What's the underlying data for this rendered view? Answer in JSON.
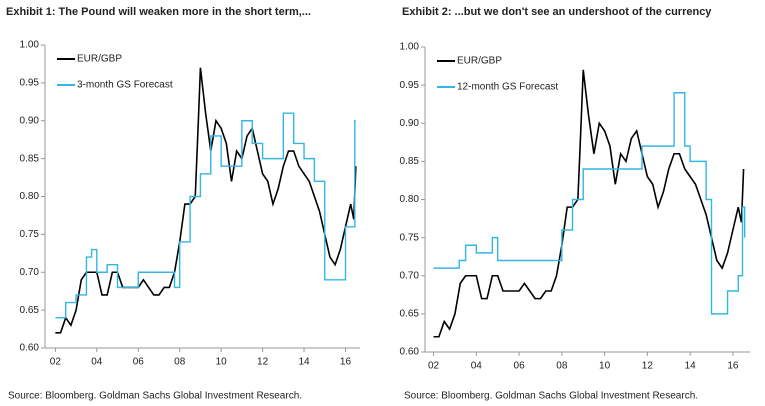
{
  "chart_data": [
    {
      "type": "line",
      "title": "Exhibit 1: The Pound will weaken more in the short term,...",
      "source": "Source: Bloomberg. Goldman Sachs Global Investment Research.",
      "xlim": [
        2001.5,
        2016.7
      ],
      "xticks": [
        {
          "value": 2002,
          "label": "02"
        },
        {
          "value": 2004,
          "label": "04"
        },
        {
          "value": 2006,
          "label": "06"
        },
        {
          "value": 2008,
          "label": "08"
        },
        {
          "value": 2010,
          "label": "10"
        },
        {
          "value": 2012,
          "label": "12"
        },
        {
          "value": 2014,
          "label": "14"
        },
        {
          "value": 2016,
          "label": "16"
        }
      ],
      "ylim": [
        0.6,
        1.0
      ],
      "yticks": [
        {
          "value": 0.6,
          "label": "0.60"
        },
        {
          "value": 0.65,
          "label": "0.65"
        },
        {
          "value": 0.7,
          "label": "0.70"
        },
        {
          "value": 0.75,
          "label": "0.75"
        },
        {
          "value": 0.8,
          "label": "0.80"
        },
        {
          "value": 0.85,
          "label": "0.85"
        },
        {
          "value": 0.9,
          "label": "0.90"
        },
        {
          "value": 0.95,
          "label": "0.95"
        },
        {
          "value": 1.0,
          "label": "1.00"
        }
      ],
      "legend": "upper left",
      "series": [
        {
          "name": "EUR/GBP",
          "color": "#000000",
          "drawstyle": "default",
          "x": [
            2002.0,
            2002.25,
            2002.5,
            2002.75,
            2003.0,
            2003.25,
            2003.5,
            2003.75,
            2004.0,
            2004.25,
            2004.5,
            2004.75,
            2005.0,
            2005.25,
            2005.5,
            2005.75,
            2006.0,
            2006.25,
            2006.5,
            2006.75,
            2007.0,
            2007.25,
            2007.5,
            2007.75,
            2008.0,
            2008.25,
            2008.5,
            2008.75,
            2008.9,
            2009.0,
            2009.25,
            2009.5,
            2009.75,
            2010.0,
            2010.25,
            2010.5,
            2010.75,
            2011.0,
            2011.25,
            2011.5,
            2011.75,
            2012.0,
            2012.25,
            2012.5,
            2012.75,
            2013.0,
            2013.25,
            2013.5,
            2013.75,
            2014.0,
            2014.25,
            2014.5,
            2014.75,
            2015.0,
            2015.25,
            2015.5,
            2015.75,
            2016.0,
            2016.25,
            2016.4,
            2016.5
          ],
          "values": [
            0.62,
            0.62,
            0.64,
            0.63,
            0.65,
            0.69,
            0.7,
            0.7,
            0.7,
            0.67,
            0.67,
            0.7,
            0.7,
            0.68,
            0.68,
            0.68,
            0.68,
            0.69,
            0.68,
            0.67,
            0.67,
            0.68,
            0.68,
            0.7,
            0.74,
            0.79,
            0.79,
            0.8,
            0.9,
            0.97,
            0.91,
            0.86,
            0.9,
            0.89,
            0.87,
            0.82,
            0.86,
            0.85,
            0.88,
            0.89,
            0.86,
            0.83,
            0.82,
            0.79,
            0.81,
            0.84,
            0.86,
            0.86,
            0.84,
            0.83,
            0.82,
            0.8,
            0.78,
            0.75,
            0.72,
            0.71,
            0.73,
            0.76,
            0.79,
            0.77,
            0.84
          ]
        },
        {
          "name": "3-month GS Forecast",
          "color": "#33b5e5",
          "drawstyle": "steps-post",
          "x": [
            2002.0,
            2002.5,
            2003.0,
            2003.5,
            2003.75,
            2004.0,
            2004.5,
            2005.0,
            2006.0,
            2007.0,
            2007.75,
            2008.0,
            2008.5,
            2009.0,
            2009.5,
            2010.0,
            2011.0,
            2011.5,
            2012.0,
            2013.0,
            2013.5,
            2014.0,
            2014.5,
            2015.0,
            2016.0,
            2016.45,
            2016.5
          ],
          "values": [
            0.64,
            0.66,
            0.67,
            0.72,
            0.73,
            0.7,
            0.71,
            0.68,
            0.7,
            0.7,
            0.68,
            0.74,
            0.8,
            0.83,
            0.88,
            0.84,
            0.9,
            0.87,
            0.85,
            0.91,
            0.87,
            0.85,
            0.82,
            0.69,
            0.76,
            0.9,
            0.9
          ]
        }
      ]
    },
    {
      "type": "line",
      "title": "Exhibit 2: ...but we don't see an undershoot of the currency",
      "source": "Source: Bloomberg. Goldman Sachs Global Investment Research.",
      "xlim": [
        2001.6,
        2016.8
      ],
      "xticks": [
        {
          "value": 2002,
          "label": "02"
        },
        {
          "value": 2004,
          "label": "04"
        },
        {
          "value": 2006,
          "label": "06"
        },
        {
          "value": 2008,
          "label": "08"
        },
        {
          "value": 2010,
          "label": "10"
        },
        {
          "value": 2012,
          "label": "12"
        },
        {
          "value": 2014,
          "label": "14"
        },
        {
          "value": 2016,
          "label": "16"
        }
      ],
      "ylim": [
        0.6,
        1.0
      ],
      "yticks": [
        {
          "value": 0.6,
          "label": "0.60"
        },
        {
          "value": 0.65,
          "label": "0.65"
        },
        {
          "value": 0.7,
          "label": "0.70"
        },
        {
          "value": 0.75,
          "label": "0.75"
        },
        {
          "value": 0.8,
          "label": "0.80"
        },
        {
          "value": 0.85,
          "label": "0.85"
        },
        {
          "value": 0.9,
          "label": "0.90"
        },
        {
          "value": 0.95,
          "label": "0.95"
        },
        {
          "value": 1.0,
          "label": "1.00"
        }
      ],
      "legend": "upper left",
      "series": [
        {
          "name": "EUR/GBP",
          "color": "#000000",
          "drawstyle": "default",
          "x": [
            2002.0,
            2002.25,
            2002.5,
            2002.75,
            2003.0,
            2003.25,
            2003.5,
            2003.75,
            2004.0,
            2004.25,
            2004.5,
            2004.75,
            2005.0,
            2005.25,
            2005.5,
            2005.75,
            2006.0,
            2006.25,
            2006.5,
            2006.75,
            2007.0,
            2007.25,
            2007.5,
            2007.75,
            2008.0,
            2008.25,
            2008.5,
            2008.75,
            2008.9,
            2009.0,
            2009.25,
            2009.5,
            2009.75,
            2010.0,
            2010.25,
            2010.5,
            2010.75,
            2011.0,
            2011.25,
            2011.5,
            2011.75,
            2012.0,
            2012.25,
            2012.5,
            2012.75,
            2013.0,
            2013.25,
            2013.5,
            2013.75,
            2014.0,
            2014.25,
            2014.5,
            2014.75,
            2015.0,
            2015.25,
            2015.5,
            2015.75,
            2016.0,
            2016.25,
            2016.4,
            2016.5
          ],
          "values": [
            0.62,
            0.62,
            0.64,
            0.63,
            0.65,
            0.69,
            0.7,
            0.7,
            0.7,
            0.67,
            0.67,
            0.7,
            0.7,
            0.68,
            0.68,
            0.68,
            0.68,
            0.69,
            0.68,
            0.67,
            0.67,
            0.68,
            0.68,
            0.7,
            0.74,
            0.79,
            0.79,
            0.8,
            0.9,
            0.97,
            0.91,
            0.86,
            0.9,
            0.89,
            0.87,
            0.82,
            0.86,
            0.85,
            0.88,
            0.89,
            0.86,
            0.83,
            0.82,
            0.79,
            0.81,
            0.84,
            0.86,
            0.86,
            0.84,
            0.83,
            0.82,
            0.8,
            0.78,
            0.75,
            0.72,
            0.71,
            0.73,
            0.76,
            0.79,
            0.77,
            0.84
          ]
        },
        {
          "name": "12-month GS Forecast",
          "color": "#33b5e5",
          "drawstyle": "steps-post",
          "x": [
            2002.0,
            2003.2,
            2003.5,
            2004.0,
            2004.75,
            2005.0,
            2007.0,
            2008.0,
            2008.5,
            2009.0,
            2011.0,
            2011.75,
            2013.25,
            2013.75,
            2014.0,
            2014.75,
            2015.0,
            2015.75,
            2016.25,
            2016.45,
            2016.55
          ],
          "values": [
            0.71,
            0.72,
            0.74,
            0.73,
            0.75,
            0.72,
            0.72,
            0.76,
            0.8,
            0.84,
            0.84,
            0.87,
            0.94,
            0.87,
            0.85,
            0.8,
            0.65,
            0.68,
            0.7,
            0.79,
            0.75
          ]
        }
      ]
    }
  ]
}
